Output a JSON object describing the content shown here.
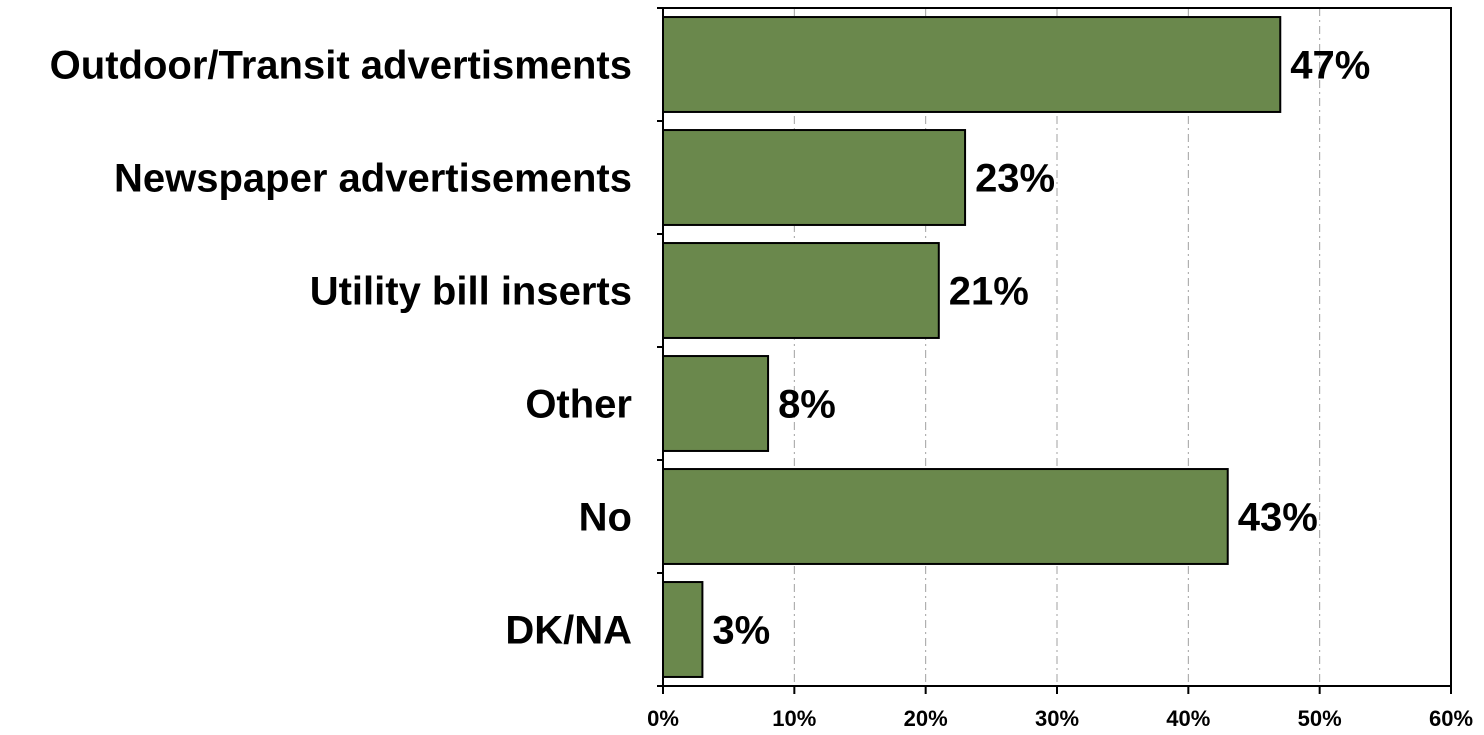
{
  "chart_data": {
    "type": "bar",
    "orientation": "horizontal",
    "categories": [
      "Outdoor/Transit advertisments",
      "Newspaper advertisements",
      "Utility bill inserts",
      "Other",
      "No",
      "DK/NA"
    ],
    "values": [
      47,
      23,
      21,
      8,
      43,
      3
    ],
    "value_labels": [
      "47%",
      "23%",
      "21%",
      "8%",
      "43%",
      "3%"
    ],
    "xlim": [
      0,
      60
    ],
    "x_ticks": [
      0,
      10,
      20,
      30,
      40,
      50,
      60
    ],
    "x_tick_labels": [
      "0%",
      "10%",
      "20%",
      "30%",
      "40%",
      "50%",
      "60%"
    ],
    "grid": "vertical dash-dot",
    "legend": "none",
    "colors": {
      "bar_fill": "#6a884c",
      "bar_stroke": "#000000",
      "grid": "#a0a0a0",
      "axis": "#000000"
    }
  }
}
